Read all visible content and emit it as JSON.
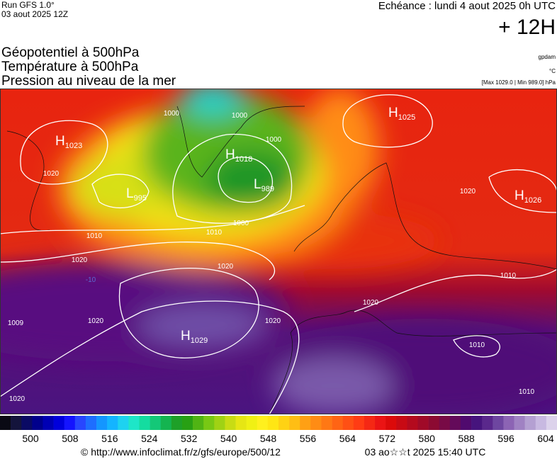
{
  "header": {
    "run": "Run GFS 1.0°",
    "run_date": "03 aout 2025 12Z",
    "valid": "Echéance : lundi 4 aout 2025 0h UTC",
    "lead": "+ 12H",
    "fields": [
      "Géopotentiel à 500hPa",
      "Température à 500hPa",
      "Pression au niveau de la mer"
    ],
    "units": [
      "gpdam",
      "°C",
      "[Max 1029.0 | Min 989.0] hPa"
    ]
  },
  "map": {
    "centers": [
      {
        "letter": "H",
        "value": 1023
      },
      {
        "letter": "H",
        "value": 1025
      },
      {
        "letter": "H",
        "value": 1018
      },
      {
        "letter": "L",
        "value": 989
      },
      {
        "letter": "L",
        "value": 995
      },
      {
        "letter": "H",
        "value": 1026
      },
      {
        "letter": "H",
        "value": 1029
      }
    ],
    "isobar_labels": [
      1020,
      1010,
      1020,
      1000,
      1010,
      1020,
      1000,
      1000,
      1000,
      1020,
      1010,
      1020,
      1010,
      1010,
      1009,
      1020,
      1020,
      1020
    ],
    "temperature_labels": [
      -10
    ]
  },
  "colorbar": {
    "colors": [
      "#0a0a14",
      "#14143c",
      "#0a0a64",
      "#00008c",
      "#0000b4",
      "#0000dc",
      "#1414ff",
      "#2846ff",
      "#1e6eff",
      "#1496ff",
      "#14b4ff",
      "#1ed2f0",
      "#1ee6c8",
      "#14dca0",
      "#14c878",
      "#14b450",
      "#1ea028",
      "#28a014",
      "#50b414",
      "#78c814",
      "#a0d214",
      "#c8dc14",
      "#e6e614",
      "#f0f014",
      "#fff01e",
      "#ffe614",
      "#ffd214",
      "#ffbe14",
      "#ffa014",
      "#ff8c14",
      "#ff7814",
      "#ff6414",
      "#ff5014",
      "#ff3c14",
      "#f52814",
      "#eb1414",
      "#dc0a0a",
      "#c80a14",
      "#b40a1e",
      "#a00a28",
      "#8c0a32",
      "#780a46",
      "#640a5a",
      "#500a6e",
      "#46147d",
      "#5a288c",
      "#6e46a0",
      "#8c64b4",
      "#a082c3",
      "#b4a0d2",
      "#c8b9e1",
      "#dcd2eb"
    ],
    "labels": [
      500,
      508,
      516,
      524,
      532,
      540,
      548,
      556,
      564,
      572,
      580,
      588,
      596,
      604
    ]
  },
  "footer": {
    "source": "© http://www.infoclimat.fr/z/gfs/europe/500/12",
    "generated": "03 ao☆☆t 2025 15:40 UTC"
  }
}
